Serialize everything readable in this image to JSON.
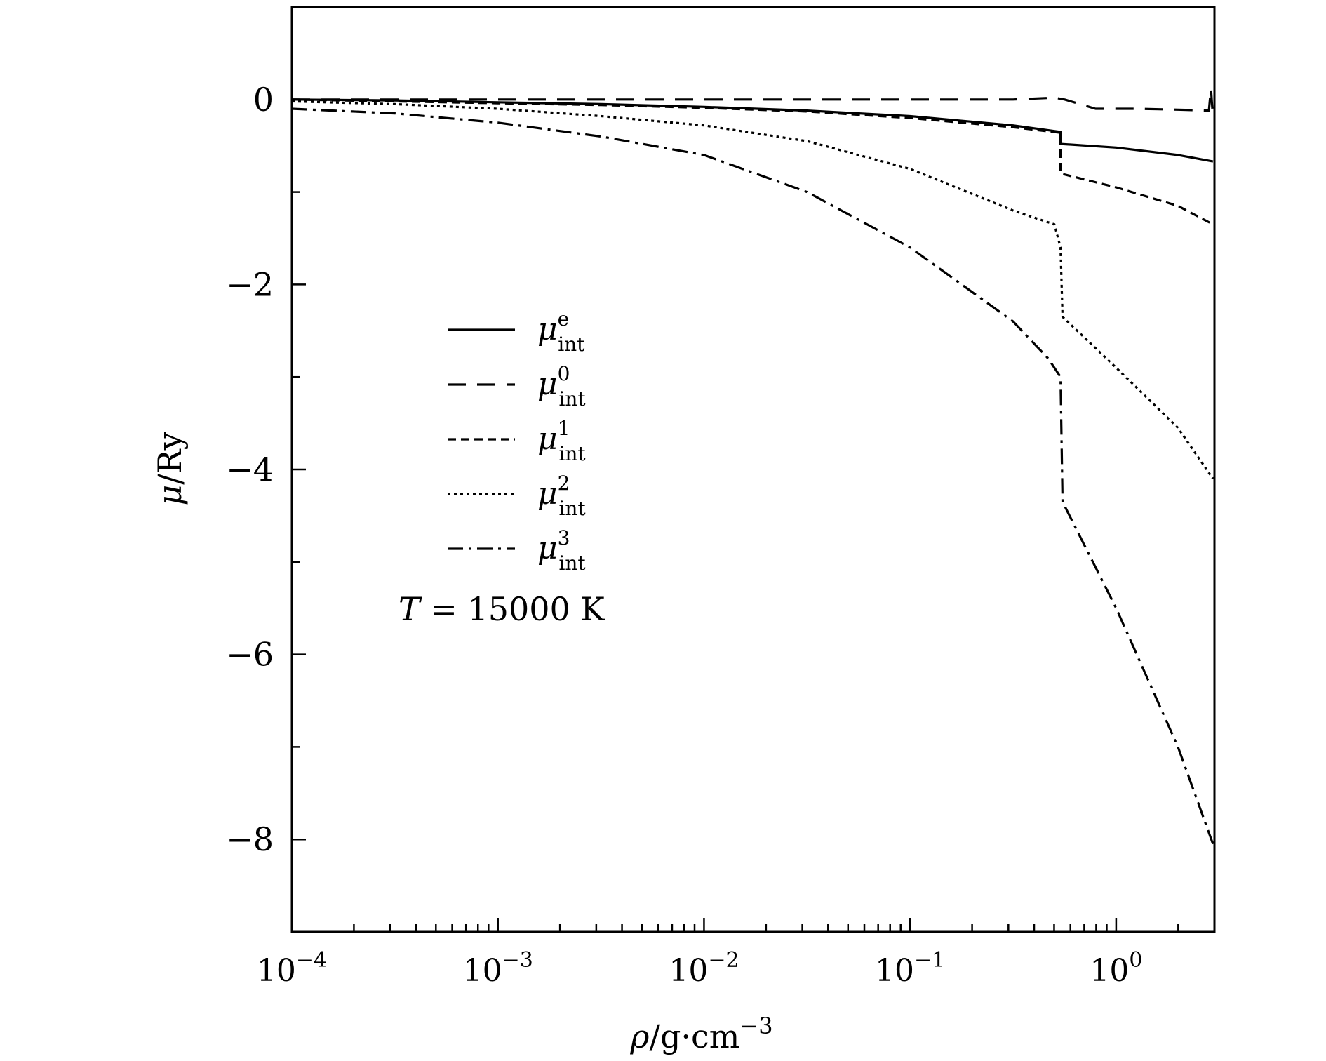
{
  "chart_data": {
    "type": "line",
    "xscale": "log",
    "xlim_log10": [
      -4,
      0.477
    ],
    "ylim": [
      -9,
      1
    ],
    "x_ticks": [
      {
        "base": "10",
        "exp": "−4"
      },
      {
        "base": "10",
        "exp": "−3"
      },
      {
        "base": "10",
        "exp": "−2"
      },
      {
        "base": "10",
        "exp": "−1"
      },
      {
        "base": "10",
        "exp": "0"
      }
    ],
    "y_ticks": [
      "0",
      "−2",
      "−4",
      "−6",
      "−8"
    ],
    "xlabel": {
      "rho": "ρ",
      "unit": "/g·cm",
      "exp": "−3"
    },
    "ylabel": {
      "mu": "μ",
      "unit": "/Ry"
    },
    "annotation": {
      "T": "T",
      "text": " = 15000 K"
    },
    "legend_position": "center-left",
    "series": [
      {
        "name": "mu_int_e",
        "sym": "μ",
        "sup": "e",
        "sub": "int",
        "dash": "",
        "points": [
          [
            -4,
            0.0
          ],
          [
            -3.5,
            -0.01
          ],
          [
            -3,
            -0.03
          ],
          [
            -2.5,
            -0.05
          ],
          [
            -2,
            -0.08
          ],
          [
            -1.5,
            -0.12
          ],
          [
            -1,
            -0.18
          ],
          [
            -0.5,
            -0.28
          ],
          [
            -0.27,
            -0.35
          ],
          [
            -0.27,
            -0.48
          ],
          [
            0,
            -0.52
          ],
          [
            0.3,
            -0.6
          ],
          [
            0.47,
            -0.67
          ]
        ]
      },
      {
        "name": "mu_int_0",
        "sym": "μ",
        "sup": "0",
        "sub": "int",
        "dash": "26 16",
        "points": [
          [
            -4,
            0.0
          ],
          [
            -3,
            0.0
          ],
          [
            -2,
            0.0
          ],
          [
            -1,
            0.0
          ],
          [
            -0.5,
            0.0
          ],
          [
            -0.3,
            0.02
          ],
          [
            -0.25,
            0.0
          ],
          [
            -0.1,
            -0.1
          ],
          [
            0.1,
            -0.1
          ],
          [
            0.3,
            -0.11
          ],
          [
            0.45,
            -0.12
          ],
          [
            0.46,
            0.12
          ],
          [
            0.47,
            -0.2
          ]
        ]
      },
      {
        "name": "mu_int_1",
        "sym": "μ",
        "sup": "1",
        "sub": "int",
        "dash": "12 7",
        "points": [
          [
            -4,
            0.0
          ],
          [
            -3.5,
            -0.02
          ],
          [
            -3,
            -0.04
          ],
          [
            -2.5,
            -0.06
          ],
          [
            -2,
            -0.09
          ],
          [
            -1.5,
            -0.13
          ],
          [
            -1,
            -0.2
          ],
          [
            -0.5,
            -0.3
          ],
          [
            -0.27,
            -0.36
          ],
          [
            -0.27,
            -0.8
          ],
          [
            0,
            -0.95
          ],
          [
            0.3,
            -1.15
          ],
          [
            0.47,
            -1.35
          ]
        ]
      },
      {
        "name": "mu_int_2",
        "sym": "μ",
        "sup": "2",
        "sub": "int",
        "dash": "4 5",
        "points": [
          [
            -4,
            -0.02
          ],
          [
            -3.5,
            -0.05
          ],
          [
            -3,
            -0.1
          ],
          [
            -2.5,
            -0.18
          ],
          [
            -2,
            -0.28
          ],
          [
            -1.5,
            -0.45
          ],
          [
            -1,
            -0.75
          ],
          [
            -0.5,
            -1.2
          ],
          [
            -0.3,
            -1.35
          ],
          [
            -0.27,
            -1.6
          ],
          [
            -0.26,
            -2.35
          ],
          [
            0,
            -2.9
          ],
          [
            0.3,
            -3.55
          ],
          [
            0.47,
            -4.1
          ]
        ]
      },
      {
        "name": "mu_int_3",
        "sym": "μ",
        "sup": "3",
        "sub": "int",
        "dash": "22 8 4 8",
        "points": [
          [
            -4,
            -0.1
          ],
          [
            -3.5,
            -0.15
          ],
          [
            -3,
            -0.25
          ],
          [
            -2.5,
            -0.4
          ],
          [
            -2,
            -0.6
          ],
          [
            -1.5,
            -1.0
          ],
          [
            -1,
            -1.6
          ],
          [
            -0.5,
            -2.4
          ],
          [
            -0.33,
            -2.8
          ],
          [
            -0.27,
            -3.0
          ],
          [
            -0.26,
            -4.35
          ],
          [
            0,
            -5.5
          ],
          [
            0.3,
            -7.0
          ],
          [
            0.47,
            -8.05
          ]
        ]
      }
    ]
  }
}
